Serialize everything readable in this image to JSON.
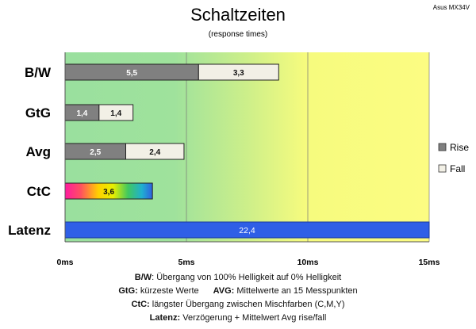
{
  "chart_data": {
    "type": "bar",
    "title": "Schaltzeiten",
    "subtitle": "(response times)",
    "model": "Asus MX34V",
    "categories": [
      "B/W",
      "GtG",
      "Avg",
      "CtC",
      "Latenz"
    ],
    "series": [
      {
        "name": "Rise",
        "color": "#808080",
        "values": [
          5.5,
          1.4,
          2.5,
          null,
          null
        ]
      },
      {
        "name": "Fall",
        "color": "#f2f0e6",
        "values": [
          3.3,
          1.4,
          2.4,
          null,
          null
        ]
      }
    ],
    "single_bars": {
      "CtC": {
        "value": 3.6,
        "label": "3,6",
        "style": "rainbow"
      },
      "Latenz": {
        "value": 22.4,
        "label": "22,4",
        "color": "#2f5fe6"
      }
    },
    "data_labels": {
      "Rise": [
        "5,5",
        "1,4",
        "2,5"
      ],
      "Fall": [
        "3,3",
        "1,4",
        "2,4"
      ]
    },
    "x_ticks": [
      0,
      5,
      10,
      15
    ],
    "x_tick_labels": [
      "0ms",
      "5ms",
      "10ms",
      "15ms"
    ],
    "xlim": [
      0,
      15
    ],
    "grid": true,
    "legend_position": "right",
    "background_zones": [
      "green",
      "yellow-green gradient",
      "yellow"
    ]
  },
  "notes": {
    "bw_key": "B/W",
    "bw_text": ":  Übergang von 100% Helligkeit auf 0% Helligkeit",
    "gtg_key": "GtG:",
    "gtg_text": " kürzeste  Werte",
    "avg_key": "AVG:",
    "avg_text": " Mittelwerte  an 15 Messpunkten",
    "ctc_key": "CtC:",
    "ctc_text": " längster Übergang  zwischen Mischfarben (C,M,Y)",
    "lat_key": "Latenz:",
    "lat_text": " Verzögerung  + Mittelwert Avg rise/fall"
  }
}
